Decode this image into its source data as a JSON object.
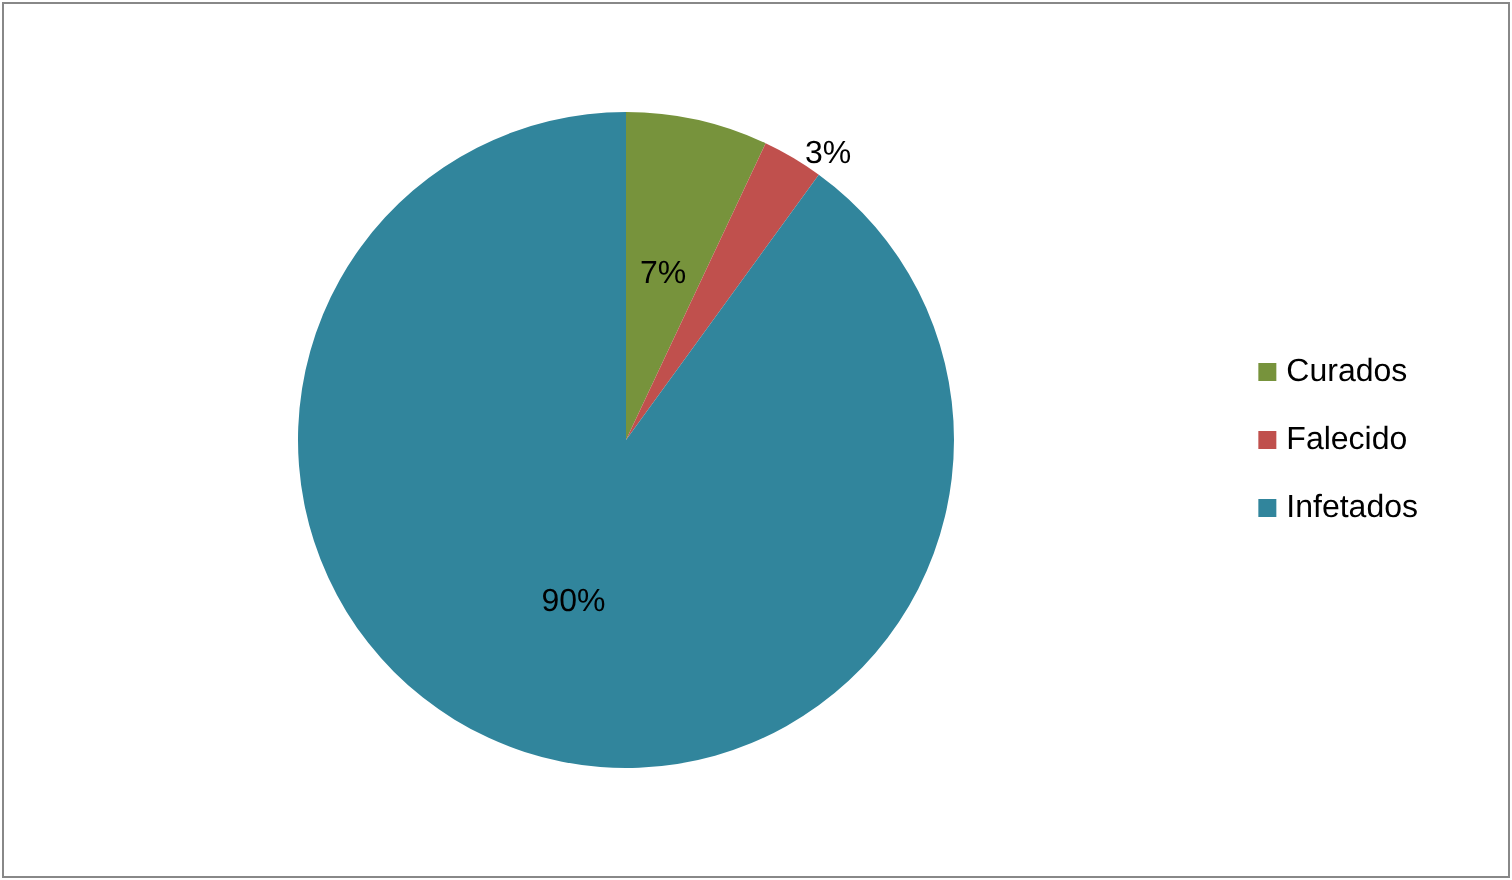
{
  "chart_data": {
    "type": "pie",
    "categories": [
      "Curados",
      "Falecido",
      "Infetados"
    ],
    "values": [
      7,
      3,
      90
    ],
    "colors": [
      "#77933c",
      "#c0504d",
      "#31859c"
    ],
    "value_labels": [
      "7%",
      "3%",
      "90%"
    ],
    "legend": "right"
  }
}
